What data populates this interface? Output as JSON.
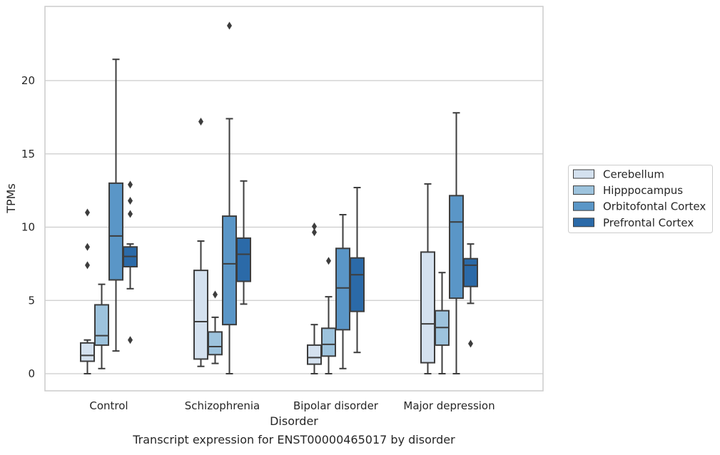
{
  "chart_data": {
    "type": "box",
    "xlabel": "Disorder",
    "ylabel": "TPMs",
    "caption": "Transcript expression for ENST00000465017 by disorder",
    "categories": [
      "Control",
      "Schizophrenia",
      "Bipolar disorder",
      "Major depression"
    ],
    "y_ticks": [
      0,
      5,
      10,
      15,
      20
    ],
    "ylim": [
      -1.1,
      24.9
    ],
    "grid": "horizontal",
    "legend_position": "right",
    "series": [
      {
        "name": "Cerebellum",
        "color": "#d4e1ef",
        "boxes": [
          {
            "whisker_low": 0.0,
            "q1": 0.85,
            "median": 1.25,
            "q3": 2.1,
            "whisker_high": 2.3,
            "outliers": [
              7.4,
              8.65,
              11.0
            ]
          },
          {
            "whisker_low": 0.5,
            "q1": 1.0,
            "median": 3.55,
            "q3": 7.05,
            "whisker_high": 9.05,
            "outliers": [
              17.2
            ]
          },
          {
            "whisker_low": 0.0,
            "q1": 0.65,
            "median": 1.1,
            "q3": 1.95,
            "whisker_high": 3.35,
            "outliers": [
              9.65,
              10.05
            ]
          },
          {
            "whisker_low": 0.0,
            "q1": 0.75,
            "median": 3.4,
            "q3": 8.3,
            "whisker_high": 12.95,
            "outliers": []
          }
        ]
      },
      {
        "name": "Hipppocampus",
        "color": "#9dc3dd",
        "boxes": [
          {
            "whisker_low": 0.35,
            "q1": 1.95,
            "median": 2.6,
            "q3": 4.7,
            "whisker_high": 6.1,
            "outliers": []
          },
          {
            "whisker_low": 0.7,
            "q1": 1.3,
            "median": 1.85,
            "q3": 2.85,
            "whisker_high": 3.85,
            "outliers": [
              5.4
            ]
          },
          {
            "whisker_low": 0.0,
            "q1": 1.2,
            "median": 2.0,
            "q3": 3.1,
            "whisker_high": 5.25,
            "outliers": [
              7.7
            ]
          },
          {
            "whisker_low": 0.0,
            "q1": 1.95,
            "median": 3.15,
            "q3": 4.3,
            "whisker_high": 6.9,
            "outliers": []
          }
        ]
      },
      {
        "name": "Orbitofontal Cortex",
        "color": "#5a96c7",
        "boxes": [
          {
            "whisker_low": 1.55,
            "q1": 6.4,
            "median": 9.4,
            "q3": 13.0,
            "whisker_high": 21.45,
            "outliers": []
          },
          {
            "whisker_low": 0.0,
            "q1": 3.35,
            "median": 7.5,
            "q3": 10.75,
            "whisker_high": 17.4,
            "outliers": [
              23.75
            ]
          },
          {
            "whisker_low": 0.35,
            "q1": 3.0,
            "median": 5.85,
            "q3": 8.55,
            "whisker_high": 10.85,
            "outliers": []
          },
          {
            "whisker_low": 0.0,
            "q1": 5.15,
            "median": 10.35,
            "q3": 12.15,
            "whisker_high": 17.8,
            "outliers": []
          }
        ]
      },
      {
        "name": "Prefrontal Cortex",
        "color": "#2b6aa8",
        "boxes": [
          {
            "whisker_low": 5.8,
            "q1": 7.3,
            "median": 8.0,
            "q3": 8.65,
            "whisker_high": 8.85,
            "outliers": [
              2.3,
              10.9,
              11.8,
              12.9
            ]
          },
          {
            "whisker_low": 4.75,
            "q1": 6.3,
            "median": 8.15,
            "q3": 9.25,
            "whisker_high": 13.15,
            "outliers": []
          },
          {
            "whisker_low": 1.45,
            "q1": 4.25,
            "median": 6.75,
            "q3": 7.9,
            "whisker_high": 12.7,
            "outliers": []
          },
          {
            "whisker_low": 4.8,
            "q1": 5.95,
            "median": 7.4,
            "q3": 7.85,
            "whisker_high": 8.85,
            "outliers": [
              2.05
            ]
          }
        ]
      }
    ]
  }
}
